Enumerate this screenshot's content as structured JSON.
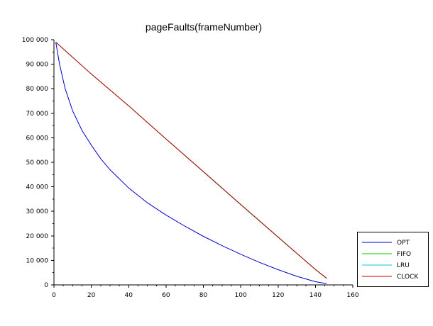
{
  "chart_data": {
    "type": "line",
    "title": "pageFaults(frameNumber)",
    "xlabel": "",
    "ylabel": "",
    "xlim": [
      0,
      160
    ],
    "ylim": [
      0,
      100000
    ],
    "x_ticks": [
      0,
      20,
      40,
      60,
      80,
      100,
      120,
      140,
      160
    ],
    "x_tick_labels": [
      "0",
      "20",
      "40",
      "60",
      "80",
      "100",
      "120",
      "140",
      "160"
    ],
    "y_ticks": [
      0,
      10000,
      20000,
      30000,
      40000,
      50000,
      60000,
      70000,
      80000,
      90000,
      100000
    ],
    "y_tick_labels": [
      "0",
      "10 000",
      "20 000",
      "30 000",
      "40 000",
      "50 000",
      "60 000",
      "70 000",
      "80 000",
      "90 000",
      "100 000"
    ],
    "grid": false,
    "legend_position": "bottom-right",
    "series": [
      {
        "name": "OPT",
        "color": "#0000cc",
        "x": [
          1,
          3,
          6,
          10,
          15,
          20,
          25,
          30,
          40,
          50,
          60,
          70,
          80,
          90,
          100,
          110,
          120,
          130,
          140,
          146
        ],
        "y": [
          99000,
          90000,
          80000,
          71000,
          63000,
          57000,
          51500,
          47000,
          39500,
          33500,
          28500,
          24000,
          19800,
          16000,
          12500,
          9200,
          6200,
          3500,
          1300,
          500
        ]
      },
      {
        "name": "FIFO",
        "color": "#00cc00",
        "x": [
          1,
          20,
          40,
          60,
          80,
          100,
          120,
          140,
          146
        ],
        "y": [
          99000,
          86000,
          73000,
          59500,
          46200,
          32800,
          19500,
          6300,
          2700
        ]
      },
      {
        "name": "LRU",
        "color": "#00cccc",
        "x": [
          1,
          20,
          40,
          60,
          80,
          100,
          120,
          140,
          146
        ],
        "y": [
          99000,
          86000,
          73000,
          59500,
          46100,
          32700,
          19400,
          6200,
          2600
        ]
      },
      {
        "name": "CLOCK",
        "color": "#cc0000",
        "x": [
          1,
          20,
          40,
          60,
          80,
          100,
          120,
          140,
          146
        ],
        "y": [
          99000,
          86000,
          73000,
          59500,
          46200,
          32800,
          19500,
          6300,
          2700
        ]
      }
    ]
  }
}
